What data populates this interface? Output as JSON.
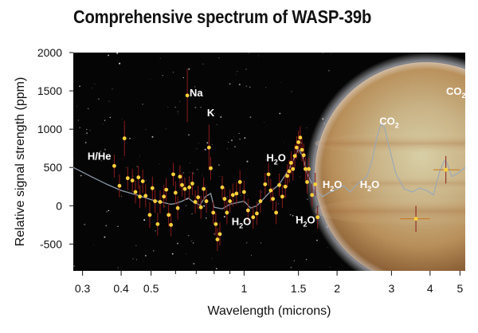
{
  "title": "Comprehensive spectrum of WASP-39b",
  "chart_data": {
    "type": "scatter",
    "title": "Comprehensive spectrum of WASP-39b",
    "xlabel": "Wavelength (microns)",
    "ylabel": "Relative signal strength (ppm)",
    "xscale": "log",
    "xlim": [
      0.28,
      5.2
    ],
    "ylim": [
      -850,
      2000
    ],
    "xticks": [
      0.3,
      0.4,
      0.5,
      1,
      1.5,
      2,
      3,
      4,
      5
    ],
    "xtick_labels": [
      "0.3",
      "0.4",
      "0.5",
      "1",
      "1.5",
      "2",
      "3",
      "4",
      "5"
    ],
    "yticks": [
      -500,
      0,
      500,
      1000,
      1500,
      2000
    ],
    "ytick_labels": [
      "-500",
      "0",
      "500",
      "1000",
      "1500",
      "2000"
    ],
    "grid": false,
    "background": "starfield with planet illustration",
    "colors": {
      "points": "#ffd23a",
      "errorbars": "#8b1a1a",
      "model": "#9aa9b8",
      "annotation": "#ffffff",
      "title": "#111111"
    },
    "series": [
      {
        "kind": "measurements",
        "points": [
          {
            "x": 0.38,
            "y": 520,
            "err": 150
          },
          {
            "x": 0.395,
            "y": 260,
            "err": 150
          },
          {
            "x": 0.41,
            "y": 880,
            "err": 230
          },
          {
            "x": 0.42,
            "y": 360,
            "err": 150
          },
          {
            "x": 0.435,
            "y": 330,
            "err": 150
          },
          {
            "x": 0.445,
            "y": 180,
            "err": 150
          },
          {
            "x": 0.455,
            "y": 370,
            "err": 150
          },
          {
            "x": 0.46,
            "y": 120,
            "err": 150
          },
          {
            "x": 0.47,
            "y": 320,
            "err": 150
          },
          {
            "x": 0.48,
            "y": 130,
            "err": 150
          },
          {
            "x": 0.495,
            "y": -120,
            "err": 170
          },
          {
            "x": 0.505,
            "y": 230,
            "err": 150
          },
          {
            "x": 0.515,
            "y": 60,
            "err": 150
          },
          {
            "x": 0.525,
            "y": -240,
            "err": 150
          },
          {
            "x": 0.535,
            "y": 50,
            "err": 150
          },
          {
            "x": 0.55,
            "y": 120,
            "err": 150
          },
          {
            "x": 0.56,
            "y": 210,
            "err": 150
          },
          {
            "x": 0.57,
            "y": -120,
            "err": 150
          },
          {
            "x": 0.58,
            "y": -250,
            "err": 150
          },
          {
            "x": 0.59,
            "y": 410,
            "err": 150
          },
          {
            "x": 0.6,
            "y": 170,
            "err": 150
          },
          {
            "x": 0.61,
            "y": -30,
            "err": 150
          },
          {
            "x": 0.62,
            "y": 380,
            "err": 150
          },
          {
            "x": 0.63,
            "y": 270,
            "err": 150
          },
          {
            "x": 0.643,
            "y": 220,
            "err": 150
          },
          {
            "x": 0.655,
            "y": 1440,
            "err": 350
          },
          {
            "x": 0.665,
            "y": 240,
            "err": 150
          },
          {
            "x": 0.68,
            "y": 290,
            "err": 150
          },
          {
            "x": 0.695,
            "y": 50,
            "err": 150
          },
          {
            "x": 0.71,
            "y": 110,
            "err": 150
          },
          {
            "x": 0.725,
            "y": -20,
            "err": 150
          },
          {
            "x": 0.74,
            "y": 220,
            "err": 150
          },
          {
            "x": 0.755,
            "y": 60,
            "err": 150
          },
          {
            "x": 0.77,
            "y": 760,
            "err": 300
          },
          {
            "x": 0.78,
            "y": 490,
            "err": 150
          },
          {
            "x": 0.795,
            "y": -90,
            "err": 150
          },
          {
            "x": 0.81,
            "y": -240,
            "err": 150
          },
          {
            "x": 0.82,
            "y": -440,
            "err": 150
          },
          {
            "x": 0.835,
            "y": -370,
            "err": 150
          },
          {
            "x": 0.85,
            "y": 240,
            "err": 150
          },
          {
            "x": 0.865,
            "y": 90,
            "err": 150
          },
          {
            "x": 0.88,
            "y": -90,
            "err": 150
          },
          {
            "x": 0.9,
            "y": 60,
            "err": 150
          },
          {
            "x": 0.92,
            "y": 140,
            "err": 150
          },
          {
            "x": 0.945,
            "y": 160,
            "err": 150
          },
          {
            "x": 0.97,
            "y": 310,
            "err": 150
          },
          {
            "x": 1.0,
            "y": 180,
            "err": 150
          },
          {
            "x": 1.03,
            "y": -60,
            "err": 150
          },
          {
            "x": 1.07,
            "y": -150,
            "err": 150
          },
          {
            "x": 1.1,
            "y": -100,
            "err": 150
          },
          {
            "x": 1.13,
            "y": 60,
            "err": 150
          },
          {
            "x": 1.17,
            "y": 280,
            "err": 150
          },
          {
            "x": 1.2,
            "y": 410,
            "err": 150
          },
          {
            "x": 1.22,
            "y": 200,
            "err": 150
          },
          {
            "x": 1.24,
            "y": 90,
            "err": 150
          },
          {
            "x": 1.27,
            "y": -90,
            "err": 150
          },
          {
            "x": 1.3,
            "y": 270,
            "err": 150
          },
          {
            "x": 1.33,
            "y": 120,
            "err": 150
          },
          {
            "x": 1.36,
            "y": 250,
            "err": 150
          },
          {
            "x": 1.38,
            "y": 390,
            "err": 150
          },
          {
            "x": 1.4,
            "y": 450,
            "err": 150
          },
          {
            "x": 1.42,
            "y": 560,
            "err": 150
          },
          {
            "x": 1.44,
            "y": 480,
            "err": 150
          },
          {
            "x": 1.46,
            "y": 650,
            "err": 150
          },
          {
            "x": 1.48,
            "y": 760,
            "err": 150
          },
          {
            "x": 1.5,
            "y": 830,
            "err": 150
          },
          {
            "x": 1.52,
            "y": 890,
            "err": 150
          },
          {
            "x": 1.54,
            "y": 730,
            "err": 150
          },
          {
            "x": 1.56,
            "y": 660,
            "err": 150
          },
          {
            "x": 1.58,
            "y": 480,
            "err": 150
          },
          {
            "x": 1.6,
            "y": 310,
            "err": 150
          },
          {
            "x": 1.62,
            "y": 480,
            "err": 150
          },
          {
            "x": 1.66,
            "y": 140,
            "err": 150
          },
          {
            "x": 1.7,
            "y": 280,
            "err": 150
          },
          {
            "x": 1.73,
            "y": -150,
            "err": 150
          },
          {
            "x": 3.6,
            "y": -170,
            "err": 170,
            "xerr": [
              3.2,
              4.0
            ]
          },
          {
            "x": 4.5,
            "y": 470,
            "err": 180,
            "xerr": [
              4.1,
              5.0
            ]
          }
        ]
      },
      {
        "kind": "model",
        "points": [
          [
            0.28,
            500
          ],
          [
            0.32,
            380
          ],
          [
            0.36,
            280
          ],
          [
            0.4,
            200
          ],
          [
            0.45,
            140
          ],
          [
            0.5,
            80
          ],
          [
            0.55,
            40
          ],
          [
            0.58,
            20
          ],
          [
            0.6,
            30
          ],
          [
            0.63,
            60
          ],
          [
            0.66,
            100
          ],
          [
            0.69,
            40
          ],
          [
            0.72,
            10
          ],
          [
            0.75,
            120
          ],
          [
            0.78,
            160
          ],
          [
            0.8,
            -20
          ],
          [
            0.85,
            -40
          ],
          [
            0.9,
            20
          ],
          [
            1.0,
            60
          ],
          [
            1.05,
            -30
          ],
          [
            1.1,
            0
          ],
          [
            1.2,
            160
          ],
          [
            1.3,
            280
          ],
          [
            1.4,
            480
          ],
          [
            1.5,
            740
          ],
          [
            1.55,
            640
          ],
          [
            1.6,
            420
          ],
          [
            1.7,
            200
          ],
          [
            1.8,
            120
          ],
          [
            1.9,
            180
          ],
          [
            2.0,
            220
          ],
          [
            2.1,
            260
          ],
          [
            2.2,
            180
          ],
          [
            2.35,
            300
          ],
          [
            2.5,
            380
          ],
          [
            2.6,
            600
          ],
          [
            2.7,
            920
          ],
          [
            2.78,
            1070
          ],
          [
            2.85,
            1020
          ],
          [
            2.95,
            760
          ],
          [
            3.1,
            420
          ],
          [
            3.3,
            220
          ],
          [
            3.5,
            180
          ],
          [
            3.7,
            230
          ],
          [
            3.9,
            200
          ],
          [
            4.1,
            140
          ],
          [
            4.3,
            450
          ],
          [
            4.45,
            590
          ],
          [
            4.55,
            550
          ],
          [
            4.7,
            380
          ],
          [
            4.9,
            420
          ],
          [
            5.2,
            500
          ]
        ]
      }
    ],
    "annotations": [
      {
        "text": "H/He",
        "x": 0.34,
        "y": 600
      },
      {
        "text": "Na",
        "x": 0.7,
        "y": 1430
      },
      {
        "text": "K",
        "x": 0.78,
        "y": 1170
      },
      {
        "text": "H2O",
        "x": 1.27,
        "y": 580
      },
      {
        "text": "H2O",
        "x": 0.98,
        "y": -250
      },
      {
        "text": "H2O",
        "x": 1.58,
        "y": -230
      },
      {
        "text": "H2O",
        "x": 1.93,
        "y": 230
      },
      {
        "text": "H2O",
        "x": 2.55,
        "y": 230
      },
      {
        "text": "CO2",
        "x": 2.95,
        "y": 1060
      },
      {
        "text": "CO2",
        "x": 4.85,
        "y": 1450
      }
    ]
  }
}
